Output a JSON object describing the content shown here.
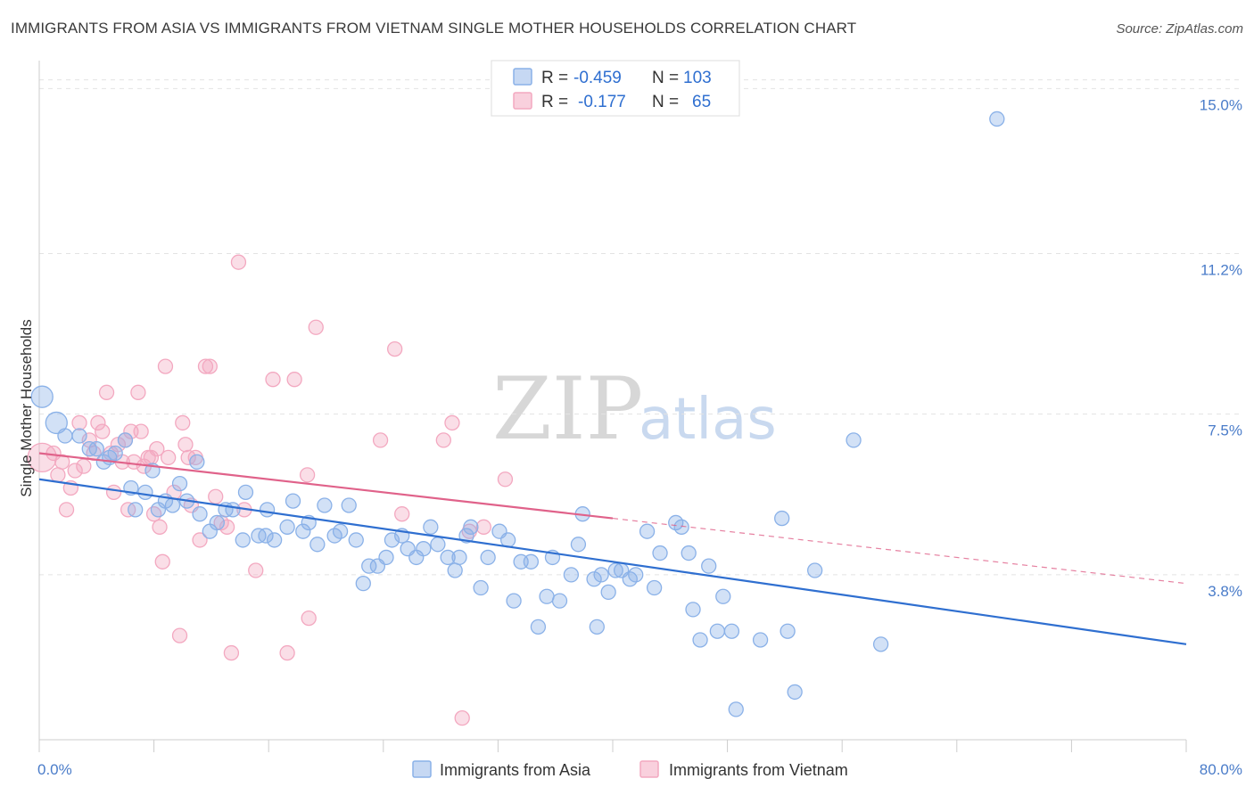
{
  "title": "IMMIGRANTS FROM ASIA VS IMMIGRANTS FROM VIETNAM SINGLE MOTHER HOUSEHOLDS CORRELATION CHART",
  "source": "Source: ZipAtlas.com",
  "watermark": {
    "zip": "ZIP",
    "atlas": "atlas"
  },
  "legend": {
    "rows": [
      {
        "r_label": "R =",
        "r_value": "-0.459",
        "n_label": "N =",
        "n_value": "103",
        "color": "#8ab1e8"
      },
      {
        "r_label": "R =",
        "r_value": "-0.177",
        "n_label": "N =",
        "n_value": "65",
        "color": "#f3a8c0"
      }
    ]
  },
  "bottom_legend": [
    {
      "label": "Immigrants from Asia",
      "color": "#8ab1e8"
    },
    {
      "label": "Immigrants from Vietnam",
      "color": "#f3a8c0"
    }
  ],
  "chart_data": {
    "type": "scatter",
    "title": "IMMIGRANTS FROM ASIA VS IMMIGRANTS FROM VIETNAM SINGLE MOTHER HOUSEHOLDS CORRELATION CHART",
    "xlabel": "",
    "ylabel": "Single Mother Households",
    "xlim": [
      0,
      80
    ],
    "ylim": [
      0,
      15.5
    ],
    "x_tick_labels": [
      "0.0%",
      "80.0%"
    ],
    "y_ticks": [
      3.8,
      7.5,
      11.2,
      15.0
    ],
    "y_tick_labels": [
      "3.8%",
      "7.5%",
      "11.2%",
      "15.0%"
    ],
    "grid": true,
    "series": [
      {
        "name": "Immigrants from Asia",
        "color": "#8ab1e8",
        "line_color": "#2f6fd0",
        "trend": {
          "x": [
            0,
            80
          ],
          "y": [
            6.0,
            2.2
          ]
        },
        "points": [
          {
            "x": 0.2,
            "y": 7.9,
            "s": 2
          },
          {
            "x": 1.2,
            "y": 7.3,
            "s": 2
          },
          {
            "x": 1.8,
            "y": 7.0,
            "s": 1
          },
          {
            "x": 2.8,
            "y": 7.0,
            "s": 1
          },
          {
            "x": 3.5,
            "y": 6.7,
            "s": 1
          },
          {
            "x": 4.0,
            "y": 6.7,
            "s": 1
          },
          {
            "x": 4.5,
            "y": 6.4,
            "s": 1
          },
          {
            "x": 4.9,
            "y": 6.5,
            "s": 1
          },
          {
            "x": 5.3,
            "y": 6.6,
            "s": 1
          },
          {
            "x": 6.0,
            "y": 6.9,
            "s": 1
          },
          {
            "x": 6.4,
            "y": 5.8,
            "s": 1
          },
          {
            "x": 6.7,
            "y": 5.3,
            "s": 1
          },
          {
            "x": 7.4,
            "y": 5.7,
            "s": 1
          },
          {
            "x": 7.9,
            "y": 6.2,
            "s": 1
          },
          {
            "x": 8.3,
            "y": 5.3,
            "s": 1
          },
          {
            "x": 8.8,
            "y": 5.5,
            "s": 1
          },
          {
            "x": 9.3,
            "y": 5.4,
            "s": 1
          },
          {
            "x": 9.8,
            "y": 5.9,
            "s": 1
          },
          {
            "x": 10.3,
            "y": 5.5,
            "s": 1
          },
          {
            "x": 11.0,
            "y": 6.4,
            "s": 1
          },
          {
            "x": 11.2,
            "y": 5.2,
            "s": 1
          },
          {
            "x": 11.9,
            "y": 4.8,
            "s": 1
          },
          {
            "x": 12.4,
            "y": 5.0,
            "s": 1
          },
          {
            "x": 13.0,
            "y": 5.3,
            "s": 1
          },
          {
            "x": 13.5,
            "y": 5.3,
            "s": 1
          },
          {
            "x": 14.2,
            "y": 4.6,
            "s": 1
          },
          {
            "x": 14.4,
            "y": 5.7,
            "s": 1
          },
          {
            "x": 15.3,
            "y": 4.7,
            "s": 1
          },
          {
            "x": 15.8,
            "y": 4.7,
            "s": 1
          },
          {
            "x": 15.9,
            "y": 5.3,
            "s": 1
          },
          {
            "x": 16.4,
            "y": 4.6,
            "s": 1
          },
          {
            "x": 17.3,
            "y": 4.9,
            "s": 1
          },
          {
            "x": 17.7,
            "y": 5.5,
            "s": 1
          },
          {
            "x": 18.4,
            "y": 4.8,
            "s": 1
          },
          {
            "x": 18.8,
            "y": 5.0,
            "s": 1
          },
          {
            "x": 19.4,
            "y": 4.5,
            "s": 1
          },
          {
            "x": 19.9,
            "y": 5.4,
            "s": 1
          },
          {
            "x": 20.6,
            "y": 4.7,
            "s": 1
          },
          {
            "x": 21.0,
            "y": 4.8,
            "s": 1
          },
          {
            "x": 21.6,
            "y": 5.4,
            "s": 1
          },
          {
            "x": 22.1,
            "y": 4.6,
            "s": 1
          },
          {
            "x": 22.6,
            "y": 3.6,
            "s": 1
          },
          {
            "x": 23.0,
            "y": 4.0,
            "s": 1
          },
          {
            "x": 23.6,
            "y": 4.0,
            "s": 1
          },
          {
            "x": 24.2,
            "y": 4.2,
            "s": 1
          },
          {
            "x": 24.6,
            "y": 4.6,
            "s": 1
          },
          {
            "x": 25.3,
            "y": 4.7,
            "s": 1
          },
          {
            "x": 25.7,
            "y": 4.4,
            "s": 1
          },
          {
            "x": 26.3,
            "y": 4.2,
            "s": 1
          },
          {
            "x": 26.8,
            "y": 4.4,
            "s": 1
          },
          {
            "x": 27.3,
            "y": 4.9,
            "s": 1
          },
          {
            "x": 27.8,
            "y": 4.5,
            "s": 1
          },
          {
            "x": 28.5,
            "y": 4.2,
            "s": 1
          },
          {
            "x": 29.0,
            "y": 3.9,
            "s": 1
          },
          {
            "x": 29.3,
            "y": 4.2,
            "s": 1
          },
          {
            "x": 29.8,
            "y": 4.7,
            "s": 1
          },
          {
            "x": 30.1,
            "y": 4.9,
            "s": 1
          },
          {
            "x": 30.8,
            "y": 3.5,
            "s": 1
          },
          {
            "x": 31.3,
            "y": 4.2,
            "s": 1
          },
          {
            "x": 32.1,
            "y": 4.8,
            "s": 1
          },
          {
            "x": 32.7,
            "y": 4.6,
            "s": 1
          },
          {
            "x": 33.1,
            "y": 3.2,
            "s": 1
          },
          {
            "x": 33.6,
            "y": 4.1,
            "s": 1
          },
          {
            "x": 34.3,
            "y": 4.1,
            "s": 1
          },
          {
            "x": 34.8,
            "y": 2.6,
            "s": 1
          },
          {
            "x": 35.4,
            "y": 3.3,
            "s": 1
          },
          {
            "x": 35.8,
            "y": 4.2,
            "s": 1
          },
          {
            "x": 36.3,
            "y": 3.2,
            "s": 1
          },
          {
            "x": 37.1,
            "y": 3.8,
            "s": 1
          },
          {
            "x": 37.6,
            "y": 4.5,
            "s": 1
          },
          {
            "x": 37.9,
            "y": 5.2,
            "s": 1
          },
          {
            "x": 38.7,
            "y": 3.7,
            "s": 1
          },
          {
            "x": 38.9,
            "y": 2.6,
            "s": 1
          },
          {
            "x": 39.2,
            "y": 3.8,
            "s": 1
          },
          {
            "x": 39.7,
            "y": 3.4,
            "s": 1
          },
          {
            "x": 40.2,
            "y": 3.9,
            "s": 1
          },
          {
            "x": 40.6,
            "y": 3.9,
            "s": 1
          },
          {
            "x": 41.2,
            "y": 3.7,
            "s": 1
          },
          {
            "x": 41.6,
            "y": 3.8,
            "s": 1
          },
          {
            "x": 42.4,
            "y": 4.8,
            "s": 1
          },
          {
            "x": 42.9,
            "y": 3.5,
            "s": 1
          },
          {
            "x": 43.3,
            "y": 4.3,
            "s": 1
          },
          {
            "x": 44.4,
            "y": 5.0,
            "s": 1
          },
          {
            "x": 44.8,
            "y": 4.9,
            "s": 1
          },
          {
            "x": 45.3,
            "y": 4.3,
            "s": 1
          },
          {
            "x": 45.6,
            "y": 3.0,
            "s": 1
          },
          {
            "x": 46.1,
            "y": 2.3,
            "s": 1
          },
          {
            "x": 46.7,
            "y": 4.0,
            "s": 1
          },
          {
            "x": 47.3,
            "y": 2.5,
            "s": 1
          },
          {
            "x": 47.7,
            "y": 3.3,
            "s": 1
          },
          {
            "x": 48.3,
            "y": 2.5,
            "s": 1
          },
          {
            "x": 48.6,
            "y": 0.7,
            "s": 1
          },
          {
            "x": 50.3,
            "y": 2.3,
            "s": 1
          },
          {
            "x": 51.8,
            "y": 5.1,
            "s": 1
          },
          {
            "x": 52.2,
            "y": 2.5,
            "s": 1
          },
          {
            "x": 52.7,
            "y": 1.1,
            "s": 1
          },
          {
            "x": 54.1,
            "y": 3.9,
            "s": 1
          },
          {
            "x": 56.8,
            "y": 6.9,
            "s": 1
          },
          {
            "x": 58.7,
            "y": 2.2,
            "s": 1
          },
          {
            "x": 66.8,
            "y": 14.3,
            "s": 1
          }
        ]
      },
      {
        "name": "Immigrants from Vietnam",
        "color": "#f3a8c0",
        "line_color": "#e0628a",
        "trend": {
          "x": [
            0,
            40
          ],
          "y": [
            6.6,
            5.1
          ]
        },
        "trend_ext": {
          "x": [
            40,
            80
          ],
          "y": [
            5.1,
            3.6
          ]
        },
        "points": [
          {
            "x": 0.2,
            "y": 6.5,
            "s": 3
          },
          {
            "x": 1.0,
            "y": 6.6,
            "s": 1
          },
          {
            "x": 1.3,
            "y": 6.1,
            "s": 1
          },
          {
            "x": 1.6,
            "y": 6.4,
            "s": 1
          },
          {
            "x": 1.9,
            "y": 5.3,
            "s": 1
          },
          {
            "x": 2.2,
            "y": 5.8,
            "s": 1
          },
          {
            "x": 2.5,
            "y": 6.2,
            "s": 1
          },
          {
            "x": 2.8,
            "y": 7.3,
            "s": 1
          },
          {
            "x": 3.1,
            "y": 6.3,
            "s": 1
          },
          {
            "x": 3.5,
            "y": 6.9,
            "s": 1
          },
          {
            "x": 3.8,
            "y": 6.6,
            "s": 1
          },
          {
            "x": 4.1,
            "y": 7.3,
            "s": 1
          },
          {
            "x": 4.4,
            "y": 7.1,
            "s": 1
          },
          {
            "x": 4.7,
            "y": 8.0,
            "s": 1
          },
          {
            "x": 5.0,
            "y": 6.6,
            "s": 1
          },
          {
            "x": 5.2,
            "y": 5.7,
            "s": 1
          },
          {
            "x": 5.5,
            "y": 6.8,
            "s": 1
          },
          {
            "x": 5.8,
            "y": 6.4,
            "s": 1
          },
          {
            "x": 6.0,
            "y": 6.9,
            "s": 1
          },
          {
            "x": 6.2,
            "y": 5.3,
            "s": 1
          },
          {
            "x": 6.4,
            "y": 7.1,
            "s": 1
          },
          {
            "x": 6.6,
            "y": 6.4,
            "s": 1
          },
          {
            "x": 6.9,
            "y": 8.0,
            "s": 1
          },
          {
            "x": 7.1,
            "y": 7.1,
            "s": 1
          },
          {
            "x": 7.3,
            "y": 6.3,
            "s": 1
          },
          {
            "x": 7.6,
            "y": 6.5,
            "s": 1
          },
          {
            "x": 7.8,
            "y": 6.5,
            "s": 1
          },
          {
            "x": 8.0,
            "y": 5.2,
            "s": 1
          },
          {
            "x": 8.2,
            "y": 6.7,
            "s": 1
          },
          {
            "x": 8.4,
            "y": 4.9,
            "s": 1
          },
          {
            "x": 8.6,
            "y": 4.1,
            "s": 1
          },
          {
            "x": 8.8,
            "y": 8.6,
            "s": 1
          },
          {
            "x": 9.0,
            "y": 6.5,
            "s": 1
          },
          {
            "x": 9.4,
            "y": 5.7,
            "s": 1
          },
          {
            "x": 9.8,
            "y": 2.4,
            "s": 1
          },
          {
            "x": 10.0,
            "y": 7.3,
            "s": 1
          },
          {
            "x": 10.2,
            "y": 6.8,
            "s": 1
          },
          {
            "x": 10.4,
            "y": 6.5,
            "s": 1
          },
          {
            "x": 10.6,
            "y": 5.4,
            "s": 1
          },
          {
            "x": 10.9,
            "y": 6.5,
            "s": 1
          },
          {
            "x": 11.2,
            "y": 4.6,
            "s": 1
          },
          {
            "x": 11.6,
            "y": 8.6,
            "s": 1
          },
          {
            "x": 11.9,
            "y": 8.6,
            "s": 1
          },
          {
            "x": 12.3,
            "y": 5.6,
            "s": 1
          },
          {
            "x": 12.7,
            "y": 5.0,
            "s": 1
          },
          {
            "x": 13.1,
            "y": 4.9,
            "s": 1
          },
          {
            "x": 13.4,
            "y": 2.0,
            "s": 1
          },
          {
            "x": 13.9,
            "y": 11.0,
            "s": 1
          },
          {
            "x": 14.3,
            "y": 5.3,
            "s": 1
          },
          {
            "x": 15.1,
            "y": 3.9,
            "s": 1
          },
          {
            "x": 16.3,
            "y": 8.3,
            "s": 1
          },
          {
            "x": 17.3,
            "y": 2.0,
            "s": 1
          },
          {
            "x": 17.8,
            "y": 8.3,
            "s": 1
          },
          {
            "x": 18.7,
            "y": 6.1,
            "s": 1
          },
          {
            "x": 18.8,
            "y": 2.8,
            "s": 1
          },
          {
            "x": 19.3,
            "y": 9.5,
            "s": 1
          },
          {
            "x": 23.8,
            "y": 6.9,
            "s": 1
          },
          {
            "x": 24.8,
            "y": 9.0,
            "s": 1
          },
          {
            "x": 25.3,
            "y": 5.2,
            "s": 1
          },
          {
            "x": 28.2,
            "y": 6.9,
            "s": 1
          },
          {
            "x": 28.8,
            "y": 7.3,
            "s": 1
          },
          {
            "x": 29.5,
            "y": 0.5,
            "s": 1
          },
          {
            "x": 30.0,
            "y": 4.8,
            "s": 1
          },
          {
            "x": 31.0,
            "y": 4.9,
            "s": 1
          },
          {
            "x": 32.5,
            "y": 6.0,
            "s": 1
          }
        ]
      }
    ]
  }
}
